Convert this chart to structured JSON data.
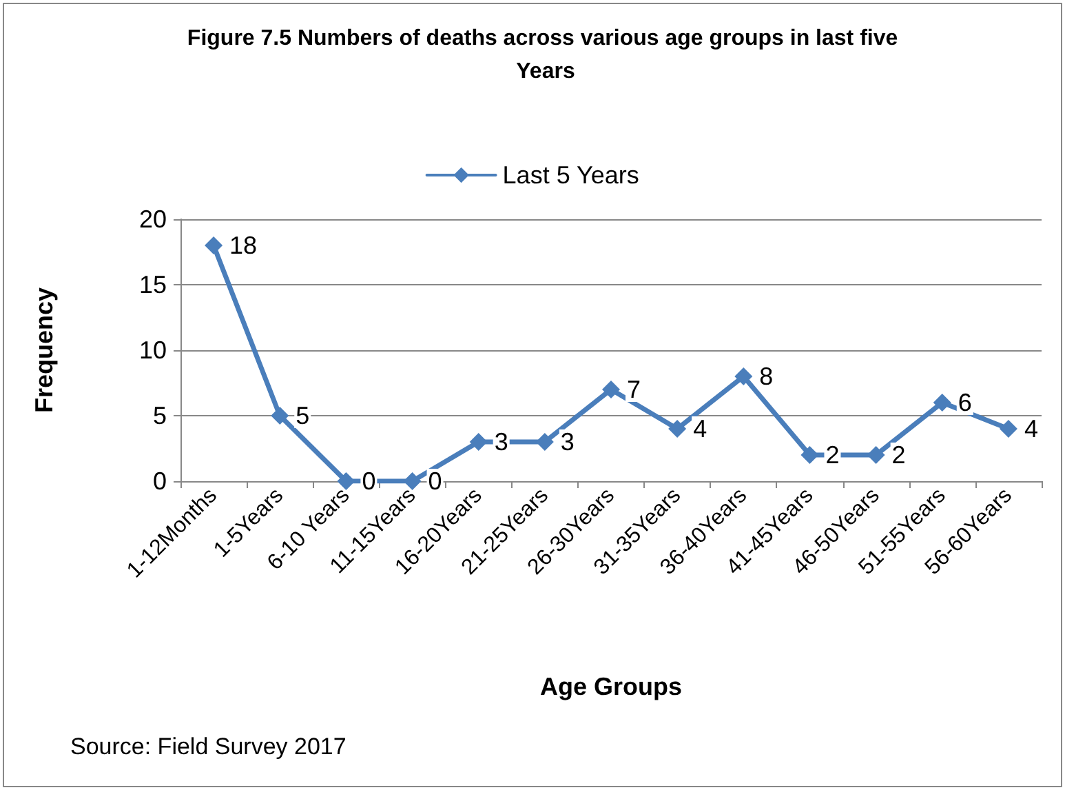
{
  "chart_data": {
    "type": "line",
    "title": "Figure 7.5 Numbers of deaths across various age groups in last five Years",
    "xlabel": "Age Groups",
    "ylabel": "Frequency",
    "categories": [
      "1-12Months",
      "1-5Years",
      "6-10 Years",
      "11-15Years",
      "16-20Years",
      "21-25Years",
      "26-30Years",
      "31-35Years",
      "36-40Years",
      "41-45Years",
      "46-50Years",
      "51-55Years",
      "56-60Years"
    ],
    "series": [
      {
        "name": "Last 5 Years",
        "color": "#4a7ebb",
        "values": [
          18,
          5,
          0,
          0,
          3,
          3,
          7,
          4,
          8,
          2,
          2,
          6,
          4
        ]
      }
    ],
    "ylim": [
      0,
      20
    ],
    "yticks": [
      0,
      5,
      10,
      15,
      20
    ],
    "grid": "y",
    "legend": "top",
    "marker": "diamond",
    "line_style": "solid",
    "data_labels": true,
    "annotations": [
      "Source: Field Survey 2017"
    ]
  }
}
